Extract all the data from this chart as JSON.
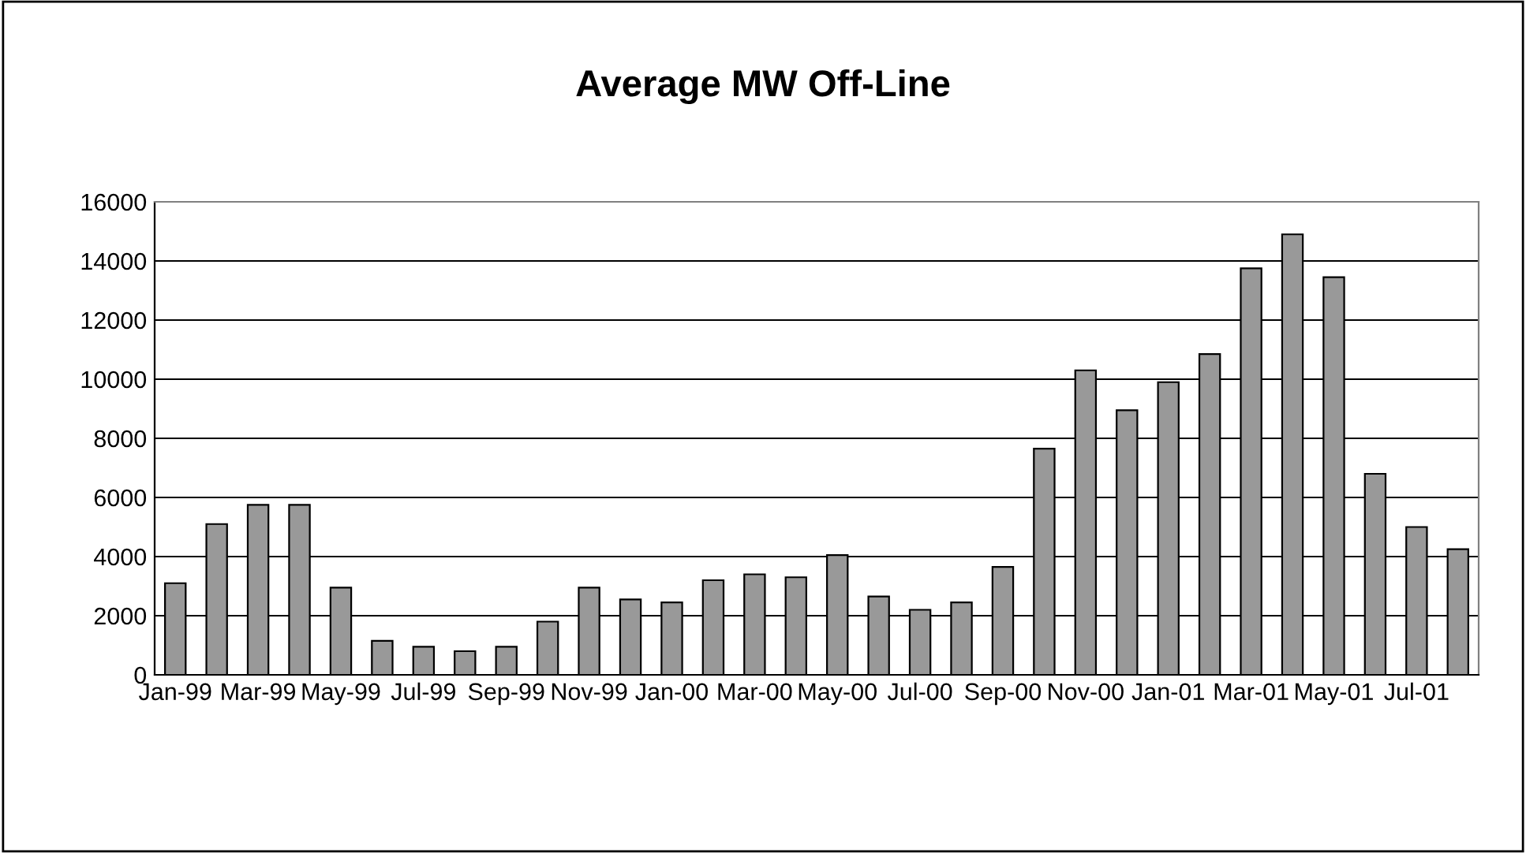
{
  "chart_data": {
    "type": "bar",
    "title": "Average MW Off-Line",
    "categories": [
      "Jan-99",
      null,
      "Mar-99",
      null,
      "May-99",
      null,
      "Jul-99",
      null,
      "Sep-99",
      null,
      "Nov-99",
      null,
      "Jan-00",
      null,
      "Mar-00",
      null,
      "May-00",
      null,
      "Jul-00",
      null,
      "Sep-00",
      null,
      "Nov-00",
      null,
      "Jan-01",
      null,
      "Mar-01",
      null,
      "May-01",
      null,
      "Jul-01",
      null
    ],
    "values": [
      3100,
      5100,
      5750,
      5750,
      2950,
      1150,
      950,
      800,
      950,
      1800,
      2950,
      2550,
      2450,
      3200,
      3400,
      3300,
      4050,
      2650,
      2200,
      2450,
      3650,
      7650,
      10300,
      8950,
      9900,
      10850,
      13750,
      14900,
      13450,
      6800,
      5000,
      4250
    ],
    "color": "#999999",
    "ylim": [
      0,
      16000
    ],
    "yticks": [
      0,
      2000,
      4000,
      6000,
      8000,
      10000,
      12000,
      14000,
      16000
    ],
    "grid": "y",
    "legend": false
  }
}
